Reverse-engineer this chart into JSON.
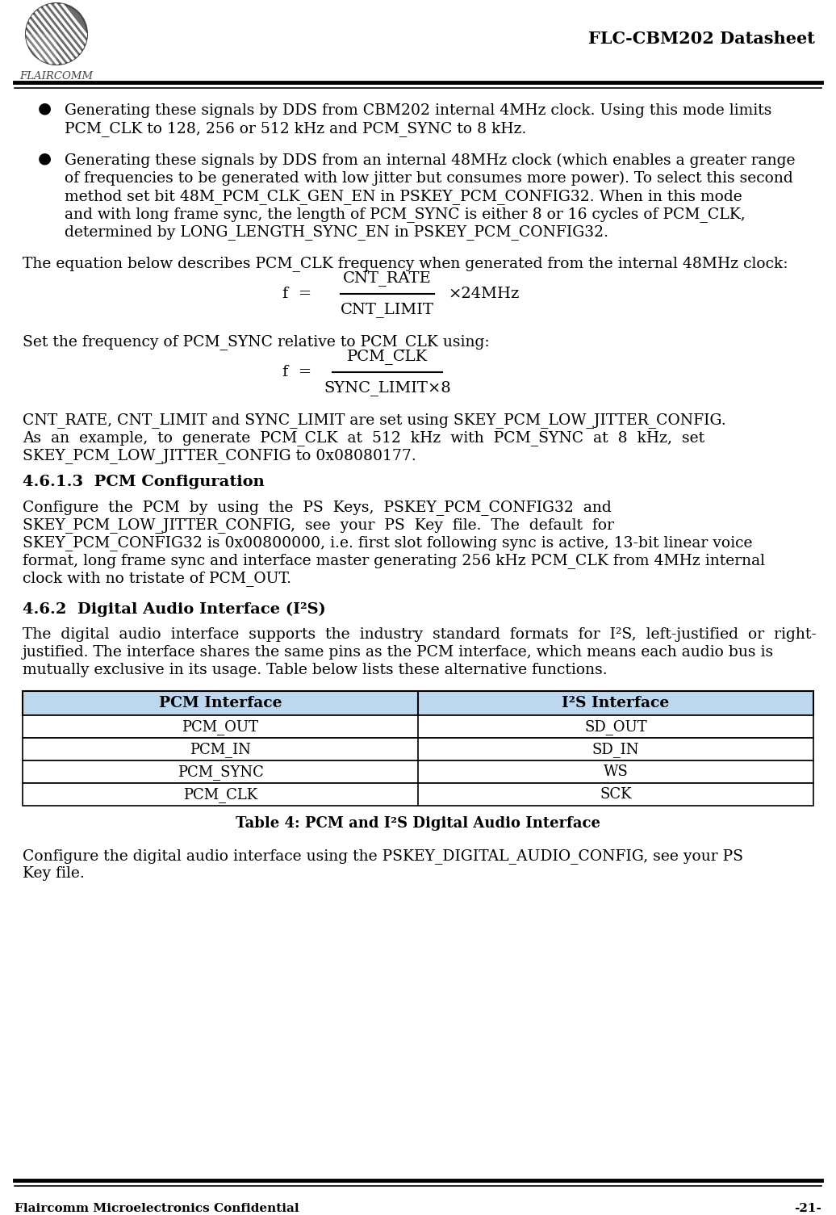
{
  "header_title": "FLC-CBM202 Datasheet",
  "header_brand": "FLAIRCOMM",
  "footer_left": "Flaircomm Microelectronics Confidential",
  "footer_right": "-21-",
  "bullet1_lines": [
    "Generating these signals by DDS from CBM202 internal 4MHz clock. Using this mode limits",
    "PCM_CLK to 128, 256 or 512 kHz and PCM_SYNC to 8 kHz."
  ],
  "bullet2_lines": [
    "Generating these signals by DDS from an internal 48MHz clock (which enables a greater range",
    "of frequencies to be generated with low jitter but consumes more power). To select this second",
    "method set bit 48M_PCM_CLK_GEN_EN in PSKEY_PCM_CONFIG32. When in this mode",
    "and with long frame sync, the length of PCM_SYNC is either 8 or 16 cycles of PCM_CLK,",
    "determined by LONG_LENGTH_SYNC_EN in PSKEY_PCM_CONFIG32."
  ],
  "eq_intro": "The equation below describes PCM_CLK frequency when generated from the internal 48MHz clock:",
  "eq1_num": "CNT_RATE",
  "eq1_den": "CNT_LIMIT",
  "eq1_right": "×24MHz",
  "eq2_intro": "Set the frequency of PCM_SYNC relative to PCM_CLK using:",
  "eq2_num": "PCM_CLK",
  "eq2_den": "SYNC_LIMIT×8",
  "para1_lines": [
    "CNT_RATE, CNT_LIMIT and SYNC_LIMIT are set using SKEY_PCM_LOW_JITTER_CONFIG.",
    "As  an  example,  to  generate  PCM_CLK  at  512  kHz  with  PCM_SYNC  at  8  kHz,  set",
    "SKEY_PCM_LOW_JITTER_CONFIG to 0x08080177."
  ],
  "section_461_3_title": "4.6.1.3  PCM Configuration",
  "s461_lines": [
    "Configure  the  PCM  by  using  the  PS  Keys,  PSKEY_PCM_CONFIG32  and",
    "SKEY_PCM_LOW_JITTER_CONFIG,  see  your  PS  Key  file.  The  default  for",
    "SKEY_PCM_CONFIG32 is 0x00800000, i.e. first slot following sync is active, 13-bit linear voice",
    "format, long frame sync and interface master generating 256 kHz PCM_CLK from 4MHz internal",
    "clock with no tristate of PCM_OUT."
  ],
  "section_462_title": "4.6.2  Digital Audio Interface (I²S)",
  "s462_lines": [
    "The  digital  audio  interface  supports  the  industry  standard  formats  for  I²S,  left-justified  or  right-",
    "justified. The interface shares the same pins as the PCM interface, which means each audio bus is",
    "mutually exclusive in its usage. Table below lists these alternative functions."
  ],
  "table_header_left": "PCM Interface",
  "table_header_right": "I²S Interface",
  "table_rows": [
    [
      "PCM_OUT",
      "SD_OUT"
    ],
    [
      "PCM_IN",
      "SD_IN"
    ],
    [
      "PCM_SYNC",
      "WS"
    ],
    [
      "PCM_CLK",
      "SCK"
    ]
  ],
  "table_caption": "Table 4: PCM and I²S Digital Audio Interface",
  "final_lines": [
    "Configure the digital audio interface using the PSKEY_DIGITAL_AUDIO_CONFIG, see your PS",
    "Key file."
  ],
  "bg_color": "#ffffff",
  "text_color": "#000000",
  "table_header_bg": "#bdd7ee",
  "table_row_bg": "#ffffff"
}
